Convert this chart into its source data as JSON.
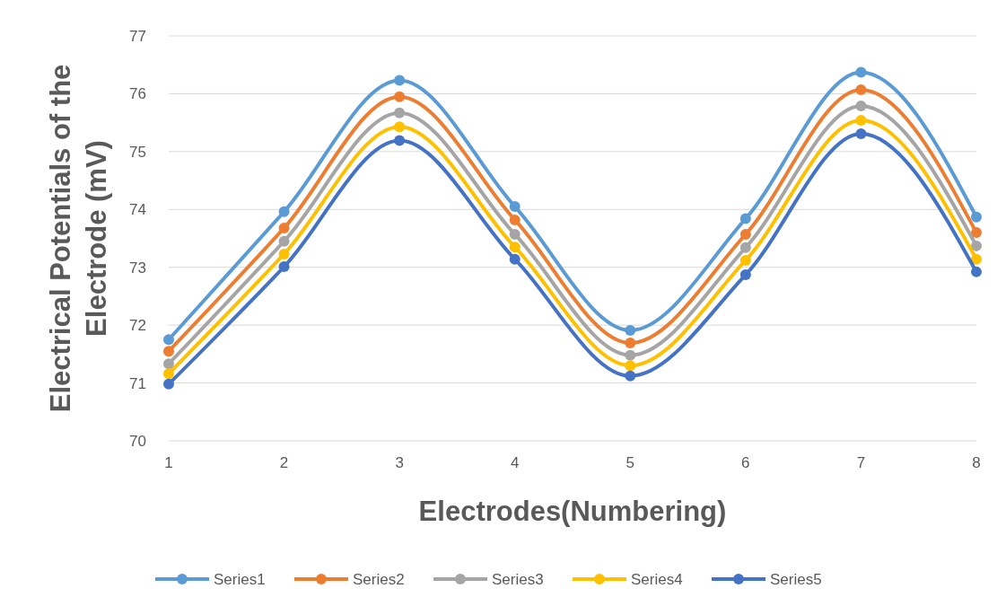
{
  "chart_data": {
    "type": "line",
    "xlabel": "Electrodes(Numbering)",
    "ylabel": "Electrical Potentials of the Electrode (mV)",
    "categories": [
      "1",
      "2",
      "3",
      "4",
      "5",
      "6",
      "7",
      "8"
    ],
    "series": [
      {
        "name": "Series1",
        "color": "#5b9bd5",
        "values": [
          71.75,
          73.96,
          76.23,
          74.05,
          71.91,
          73.84,
          76.37,
          73.87
        ]
      },
      {
        "name": "Series2",
        "color": "#ed7d31",
        "values": [
          71.55,
          73.68,
          75.95,
          73.82,
          71.69,
          73.57,
          76.07,
          73.6
        ]
      },
      {
        "name": "Series3",
        "color": "#a5a5a5",
        "values": [
          71.33,
          73.45,
          75.67,
          73.57,
          71.48,
          73.34,
          75.79,
          73.37
        ]
      },
      {
        "name": "Series4",
        "color": "#ffc000",
        "values": [
          71.16,
          73.23,
          75.43,
          73.35,
          71.3,
          73.12,
          75.54,
          73.14
        ]
      },
      {
        "name": "Series5",
        "color": "#4472c4",
        "values": [
          70.98,
          73.01,
          75.19,
          73.14,
          71.12,
          72.87,
          75.31,
          72.92
        ]
      }
    ],
    "ylim": [
      70,
      77
    ],
    "yticks": [
      70,
      71,
      72,
      73,
      74,
      75,
      76,
      77
    ],
    "grid": "y",
    "legend": "bottom",
    "marker": "circle",
    "line_style": "solid"
  }
}
